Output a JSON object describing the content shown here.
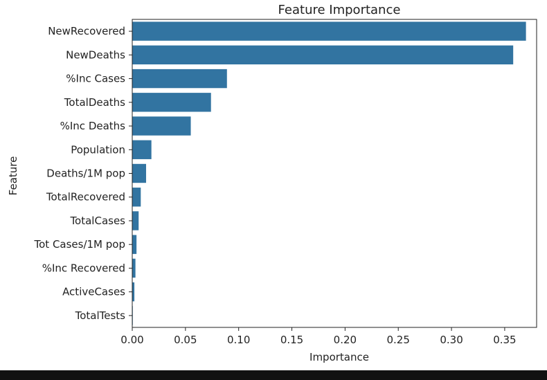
{
  "chart_data": {
    "type": "bar",
    "orientation": "horizontal",
    "title": "Feature Importance",
    "xlabel": "Importance",
    "ylabel": "Feature",
    "xlim": [
      0,
      0.38
    ],
    "xticks": [
      0.0,
      0.05,
      0.1,
      0.15,
      0.2,
      0.25,
      0.3,
      0.35
    ],
    "xtick_labels": [
      "0.00",
      "0.05",
      "0.10",
      "0.15",
      "0.20",
      "0.25",
      "0.30",
      "0.35"
    ],
    "categories": [
      "NewRecovered",
      "NewDeaths",
      "%Inc Cases",
      "TotalDeaths",
      "%Inc Deaths",
      "Population",
      "Deaths/1M pop",
      "TotalRecovered",
      "TotalCases",
      "Tot Cases/1M pop",
      "%Inc Recovered",
      "ActiveCases",
      "TotalTests"
    ],
    "values": [
      0.37,
      0.358,
      0.089,
      0.074,
      0.055,
      0.018,
      0.013,
      0.008,
      0.006,
      0.004,
      0.003,
      0.002,
      0.0005
    ],
    "grid": false,
    "colors": {
      "bar": "#3274a1",
      "axis": "#222222"
    }
  }
}
